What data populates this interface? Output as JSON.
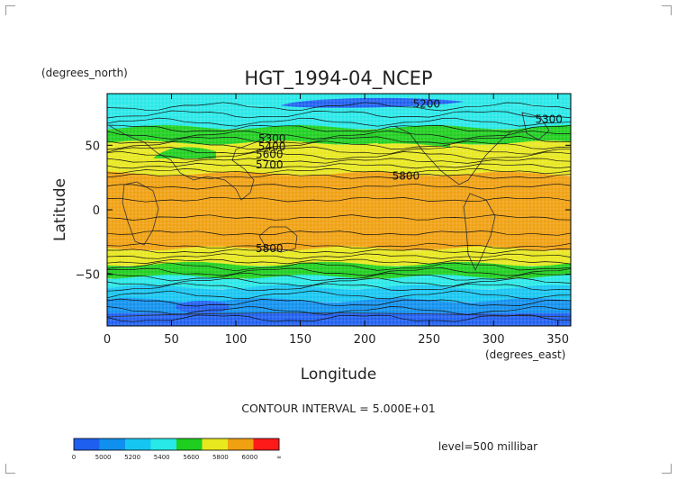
{
  "chart_data": {
    "type": "heatmap",
    "title": "HGT_1994-04_NCEP",
    "xlabel": "Longitude",
    "ylabel": "Latitude",
    "x_units": "(degrees_east)",
    "y_units": "(degrees_north)",
    "xlim": [
      0,
      360
    ],
    "ylim": [
      -90,
      90
    ],
    "x_ticks": [
      0,
      50,
      100,
      150,
      200,
      250,
      300,
      350
    ],
    "y_ticks": [
      50,
      0,
      -50
    ],
    "grid": true,
    "contour_interval_text": "CONTOUR INTERVAL = 5.000E+01",
    "level_text": "level=500 millibar",
    "contour_labels": [
      {
        "text": "5200",
        "x": 248,
        "y": 82
      },
      {
        "text": "5300",
        "x": 343,
        "y": 70
      },
      {
        "text": "5300",
        "x": 128,
        "y": 55
      },
      {
        "text": "5400",
        "x": 128,
        "y": 49
      },
      {
        "text": "5600",
        "x": 126,
        "y": 43
      },
      {
        "text": "5700",
        "x": 126,
        "y": 35
      },
      {
        "text": "5800",
        "x": 232,
        "y": 26
      },
      {
        "text": "5800",
        "x": 126,
        "y": -30
      }
    ],
    "colorbar": {
      "tick_labels": [
        "0",
        "5000",
        "5200",
        "5400",
        "5600",
        "5800",
        "6000",
        "∞"
      ],
      "band_colors": [
        "#1f5ff0",
        "#1090ee",
        "#16c6f2",
        "#28e8e8",
        "#1fcf1f",
        "#e8e81e",
        "#f0a010",
        "#ff1a1a"
      ]
    },
    "latitude_bands": [
      {
        "lat_top": 90,
        "lat_bottom": 82,
        "value": 5250,
        "color": "#28e8e8"
      },
      {
        "lat_top": 82,
        "lat_bottom": 64,
        "value": 5350,
        "color": "#28e8e8"
      },
      {
        "lat_top": 64,
        "lat_bottom": 52,
        "value": 5450,
        "color": "#1fcf1f"
      },
      {
        "lat_top": 52,
        "lat_bottom": 36,
        "value": 5700,
        "color": "#e8e81e"
      },
      {
        "lat_top": 36,
        "lat_bottom": 28,
        "value": 5750,
        "color": "#e8e81e"
      },
      {
        "lat_top": 28,
        "lat_bottom": -30,
        "value": 5850,
        "color": "#f0a010"
      },
      {
        "lat_top": -30,
        "lat_bottom": -42,
        "value": 5750,
        "color": "#e8e81e"
      },
      {
        "lat_top": -42,
        "lat_bottom": -52,
        "value": 5450,
        "color": "#1fcf1f"
      },
      {
        "lat_top": -52,
        "lat_bottom": -60,
        "value": 5300,
        "color": "#28e8e8"
      },
      {
        "lat_top": -60,
        "lat_bottom": -70,
        "value": 5150,
        "color": "#16c6f2"
      },
      {
        "lat_top": -70,
        "lat_bottom": -80,
        "value": 5050,
        "color": "#1090ee"
      },
      {
        "lat_top": -80,
        "lat_bottom": -90,
        "value": 4950,
        "color": "#1f5ff0"
      }
    ]
  }
}
